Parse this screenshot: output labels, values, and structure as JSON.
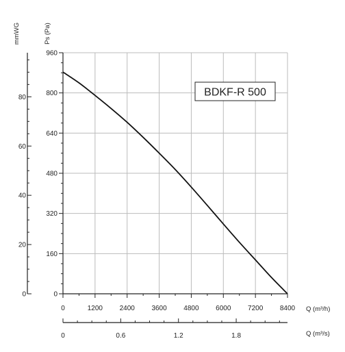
{
  "chart_data": {
    "type": "line",
    "title": "",
    "badge": "BDKF-R 500",
    "grid": true,
    "series": [
      {
        "x": [
          0,
          600,
          1200,
          1800,
          2400,
          3000,
          3600,
          4200,
          4800,
          5400,
          6000,
          6600,
          7200,
          7800,
          8400
        ],
        "values": [
          883,
          840,
          790,
          738,
          683,
          623,
          560,
          495,
          425,
          352,
          278,
          205,
          135,
          65,
          0
        ]
      }
    ],
    "x_axis": {
      "label": "Q (m³/h)",
      "range": [
        0,
        8400
      ],
      "ticks": [
        0,
        1200,
        2400,
        3600,
        4800,
        6000,
        7200,
        8400
      ],
      "tick_labels": [
        "0",
        "1200",
        "2400",
        "3600",
        "4800",
        "6000",
        "7200",
        "8400"
      ]
    },
    "x_axis_secondary": {
      "label": "Q (m³/s)",
      "range": [
        0,
        2.333
      ],
      "ticks": [
        0,
        0.6,
        1.2,
        1.8
      ],
      "tick_labels": [
        "0",
        "0.6",
        "1.2",
        "1.8"
      ]
    },
    "y_axis": {
      "label": "Ps (Pa)",
      "range": [
        0,
        960
      ],
      "ticks": [
        0,
        160,
        320,
        480,
        640,
        800,
        960
      ],
      "tick_labels": [
        "0",
        "160",
        "320",
        "480",
        "640",
        "800",
        "960"
      ]
    },
    "y_axis_secondary": {
      "label": "mmWG",
      "range": [
        0,
        97.9
      ],
      "ticks": [
        0,
        20,
        40,
        60,
        80
      ],
      "tick_labels": [
        "0",
        "20",
        "40",
        "60",
        "80"
      ]
    },
    "colors": {
      "line": "#111111",
      "grid": "#bbbbbb",
      "axis": "#222222"
    }
  }
}
